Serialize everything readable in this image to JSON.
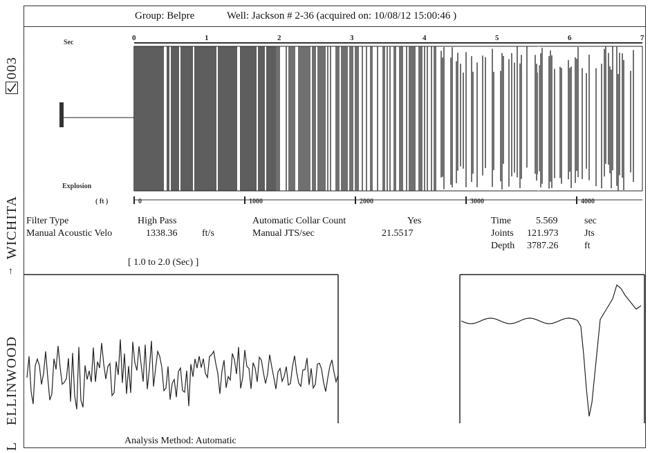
{
  "header": {
    "group": "Group: Belpre",
    "well": "Well: Jackson # 2-36 (acquired on: 10/08/12 15:00:46 )"
  },
  "side_labels": {
    "top": "003",
    "middle": "WICHITA",
    "bottom": "ELLINWOOD",
    "bottom_cut": "L"
  },
  "params_left": {
    "filter_type_label": "Filter Type",
    "filter_type_value": "High Pass",
    "velocity_label": "Manual Acoustic Velo",
    "velocity_value": "1338.36",
    "velocity_unit": "ft/s"
  },
  "params_mid": {
    "collar_label": "Automatic Collar Count",
    "collar_value": "Yes",
    "jts_label": "Manual JTS/sec",
    "jts_value": "21.5517"
  },
  "params_right": {
    "time_label": "Time",
    "time_value": "5.569",
    "time_unit": "sec",
    "joints_label": "Joints",
    "joints_value": "121.973",
    "joints_unit": "Jts",
    "depth_label": "Depth",
    "depth_value": "3787.26",
    "depth_unit": "ft"
  },
  "lower_plot_range": "[ 1.0 to 2.0 (Sec) ]",
  "analysis": "Analysis Method:   Automatic",
  "chart_data": [
    {
      "type": "heatmap",
      "title": "",
      "sec_axis_label": "Sec",
      "ft_axis_label": "( ft )",
      "explosion_label": "Explosion",
      "sec_ticks": [
        "0",
        "1",
        "2",
        "3",
        "4",
        "5",
        "6",
        "7"
      ],
      "ft_ticks": [
        "0",
        "1000",
        "2000",
        "3000",
        "4000"
      ],
      "xlim_sec": [
        0,
        7
      ],
      "marker_time": 5.569
    },
    {
      "type": "line",
      "title": "",
      "xlim": [
        1.0,
        2.0
      ],
      "xlabel": "",
      "ylabel": ""
    },
    {
      "type": "line",
      "title": "",
      "xlabel": "",
      "ylabel": ""
    }
  ]
}
